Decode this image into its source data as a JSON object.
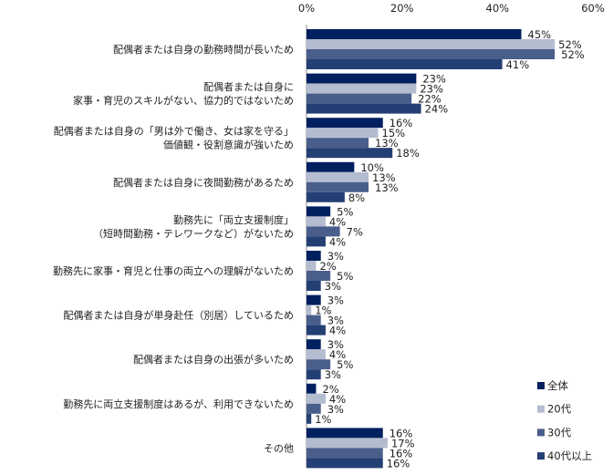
{
  "chart_data": {
    "type": "bar",
    "orientation": "horizontal",
    "categories": [
      [
        "配偶者または自身の勤務時間が長いため"
      ],
      [
        "配偶者または自身に",
        "家事・育児のスキルがない、協力的ではないため"
      ],
      [
        "配偶者または自身の「男は外で働き、女は家を守る」",
        "価値観・役割意識が強いため"
      ],
      [
        "配偶者または自身に夜間勤務があるため"
      ],
      [
        "勤務先に「両立支援制度」",
        "（短時間勤務・テレワークなど）がないため"
      ],
      [
        "勤務先に家事・育児と仕事の両立への理解がないため"
      ],
      [
        "配偶者または自身が単身赴任（別居）しているため"
      ],
      [
        "配偶者または自身の出張が多いため"
      ],
      [
        "勤務先に両立支援制度はあるが、利用できないため"
      ],
      [
        "その他"
      ]
    ],
    "series": [
      {
        "name": "全体",
        "color": "#002060",
        "values": [
          45,
          23,
          16,
          10,
          5,
          3,
          3,
          3,
          2,
          16
        ]
      },
      {
        "name": "20代",
        "color": "#B4BCD0",
        "values": [
          52,
          23,
          15,
          13,
          4,
          2,
          1,
          4,
          4,
          17
        ]
      },
      {
        "name": "30代",
        "color": "#4A5E8C",
        "values": [
          52,
          22,
          13,
          13,
          7,
          5,
          3,
          5,
          3,
          16
        ]
      },
      {
        "name": "40代以上",
        "color": "#243F74",
        "values": [
          41,
          24,
          18,
          8,
          4,
          3,
          4,
          3,
          1,
          16
        ]
      }
    ],
    "xlim": [
      0,
      60
    ],
    "xticks": [
      "0%",
      "20%",
      "40%",
      "60%"
    ],
    "tick_values": [
      0,
      20,
      40,
      60
    ],
    "value_suffix": "%",
    "xlabel": "",
    "ylabel": "",
    "title": "",
    "grid": false,
    "legend": "bottom-right"
  }
}
